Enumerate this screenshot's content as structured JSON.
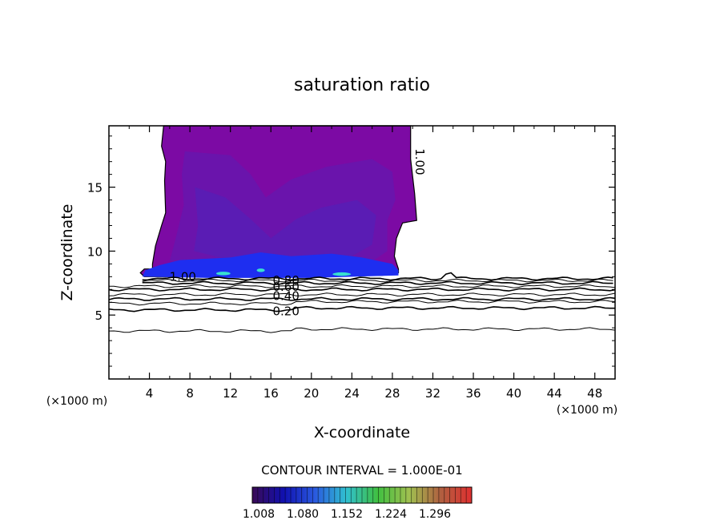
{
  "chart_data": {
    "type": "contour",
    "title": "saturation ratio",
    "xlabel": "X-coordinate",
    "ylabel": "Z-coordinate",
    "x_unit_left": "(×1000 m)",
    "x_unit_right": "(×1000 m)",
    "xlim": [
      0,
      50
    ],
    "ylim": [
      0,
      19.8
    ],
    "x_ticks": [
      4,
      8,
      12,
      16,
      20,
      24,
      28,
      32,
      36,
      40,
      44,
      48
    ],
    "y_ticks": [
      5,
      10,
      15
    ],
    "contour_interval_text": "CONTOUR INTERVAL = 1.000E-01",
    "contour_labels": [
      {
        "text": "1.00",
        "x": 7.3,
        "z": 8.0
      },
      {
        "text": "0.80",
        "x": 17.5,
        "z": 7.7
      },
      {
        "text": "0.60",
        "x": 17.5,
        "z": 7.2
      },
      {
        "text": "0.40",
        "x": 17.5,
        "z": 6.5
      },
      {
        "text": "0.20",
        "x": 17.5,
        "z": 5.3
      },
      {
        "text": "1.00",
        "x": 30.3,
        "z": 17.3
      }
    ],
    "colorbar": {
      "min": 1.0,
      "max": 1.35,
      "tick_labels": [
        "1.008",
        "1.080",
        "1.152",
        "1.224",
        "1.296"
      ],
      "colors": [
        "#3a0a55",
        "#1010b0",
        "#2a5ae0",
        "#30c0d0",
        "#40c040",
        "#a0c050",
        "#b06040",
        "#e03030"
      ]
    },
    "fill_colors": {
      "cloud_main": "#7c0aa4",
      "cloud_inner": "#6a14ac",
      "cloud_core": "#5a1cb4",
      "cloud_base": "#1e2ef0",
      "cloud_base_hi": "#38e0d0"
    },
    "contour_levels_below_cloud": [
      0.9,
      0.8,
      0.7,
      0.6,
      0.5,
      0.4,
      0.3,
      0.2,
      0.1
    ]
  }
}
